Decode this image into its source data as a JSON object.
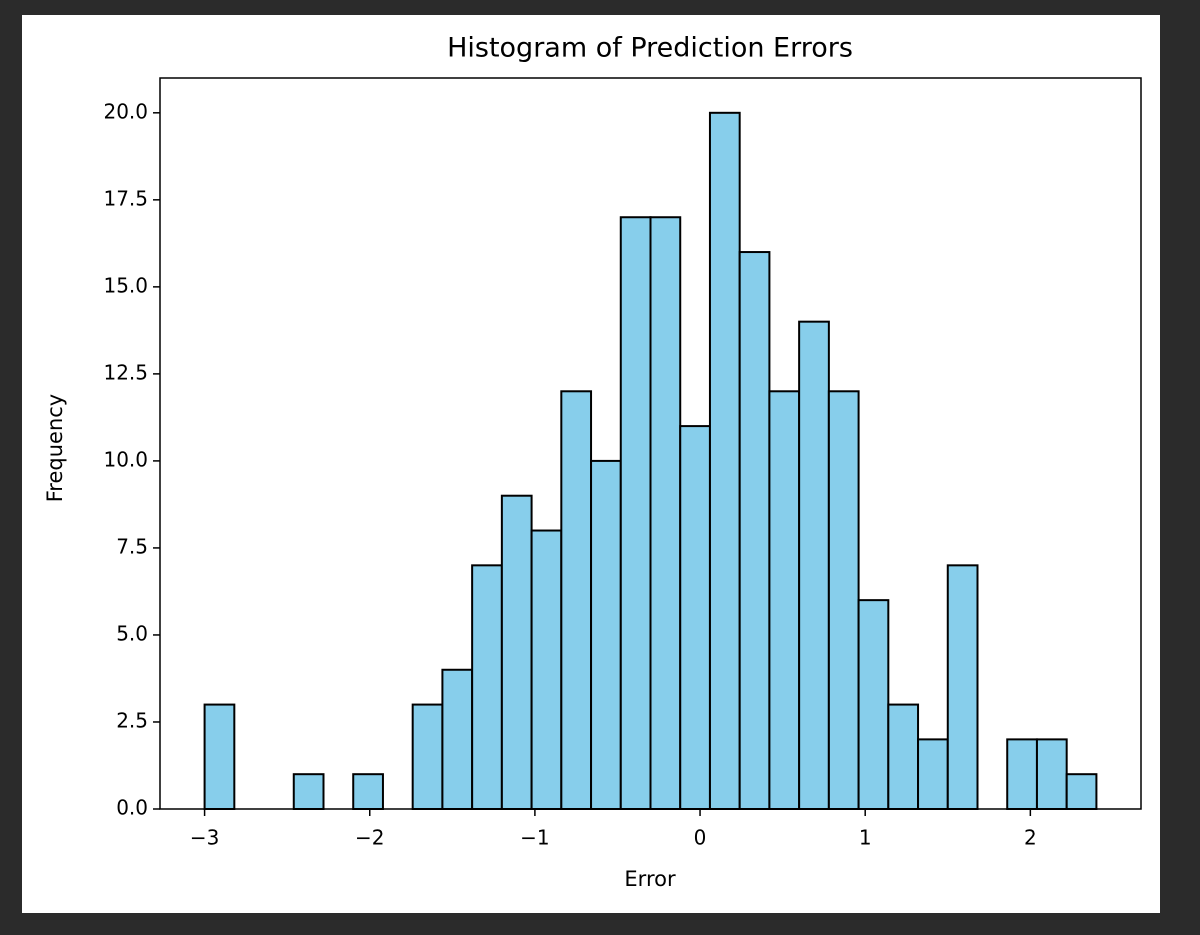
{
  "chart_data": {
    "type": "histogram",
    "title": "Histogram of Prediction Errors",
    "x_label": "Error",
    "y_label": "Frequency",
    "bins": [
      -3,
      -2.82,
      -2.64,
      -2.46,
      -2.28,
      -2.1,
      -1.92,
      -1.74,
      -1.56,
      -1.38,
      -1.2,
      -1.02,
      -0.84,
      -0.66,
      -0.48,
      -0.3,
      -0.12,
      0.06,
      0.24,
      0.42,
      0.6,
      0.78,
      0.96,
      1.14,
      1.32,
      1.5,
      1.68,
      1.86,
      2.04,
      2.22,
      2.4
    ],
    "counts": [
      3,
      0,
      0,
      1,
      0,
      1,
      0,
      3,
      4,
      7,
      9,
      8,
      12,
      10,
      17,
      17,
      11,
      20,
      16,
      12,
      14,
      12,
      6,
      3,
      2,
      7,
      0,
      2,
      2,
      1
    ],
    "color": "#87ceeb",
    "edge_color": "#000000",
    "xlim": [
      -3.27,
      2.67
    ],
    "ylim": [
      0,
      21
    ],
    "xticks": [
      {
        "value": -3,
        "label": "−3"
      },
      {
        "value": -2,
        "label": "−2"
      },
      {
        "value": -1,
        "label": "−1"
      },
      0,
      1,
      2
    ],
    "yticks": [
      {
        "value": 0,
        "label": "0.0"
      },
      2.5,
      {
        "value": 5,
        "label": "5.0"
      },
      7.5,
      {
        "value": 10,
        "label": "10.0"
      },
      12.5,
      {
        "value": 15,
        "label": "15.0"
      },
      17.5,
      {
        "value": 20,
        "label": "20.0"
      }
    ],
    "grid": false
  }
}
